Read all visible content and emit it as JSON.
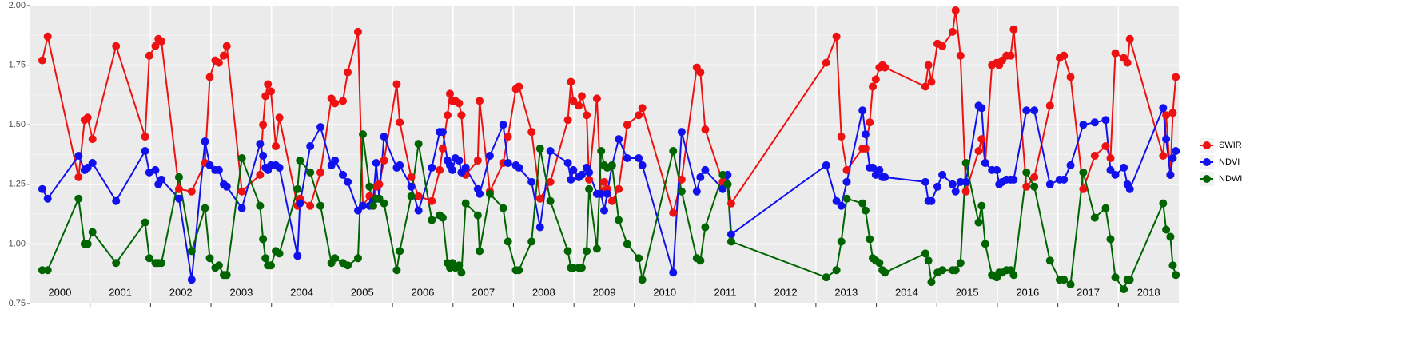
{
  "chart_data": {
    "type": "line",
    "x": [
      2000.21,
      2000.3,
      2000.81,
      2000.91,
      2000.96,
      2001.04,
      2001.43,
      2001.91,
      2001.98,
      2002.08,
      2002.13,
      2002.18,
      2002.47,
      2002.68,
      2002.9,
      2002.98,
      2003.07,
      2003.13,
      2003.21,
      2003.26,
      2003.51,
      2003.81,
      2003.86,
      2003.9,
      2003.94,
      2003.99,
      2004.07,
      2004.13,
      2004.43,
      2004.47,
      2004.64,
      2004.81,
      2004.99,
      2005.05,
      2005.18,
      2005.26,
      2005.43,
      2005.51,
      2005.62,
      2005.68,
      2005.73,
      2005.78,
      2005.86,
      2006.07,
      2006.12,
      2006.31,
      2006.43,
      2006.65,
      2006.78,
      2006.83,
      2006.91,
      2006.95,
      2006.99,
      2007.04,
      2007.1,
      2007.14,
      2007.21,
      2007.41,
      2007.44,
      2007.61,
      2007.83,
      2007.91,
      2008.04,
      2008.09,
      2008.3,
      2008.44,
      2008.61,
      2008.9,
      2008.95,
      2008.99,
      2009.08,
      2009.13,
      2009.21,
      2009.25,
      2009.38,
      2009.45,
      2009.5,
      2009.55,
      2009.63,
      2009.74,
      2009.88,
      2010.07,
      2010.13,
      2010.64,
      2010.78,
      2011.03,
      2011.09,
      2011.17,
      2011.46,
      2011.54,
      2011.6,
      2013.17,
      2013.34,
      2013.42,
      2013.51,
      2013.77,
      2013.82,
      2013.89,
      2013.94,
      2013.99,
      2014.05,
      2014.1,
      2014.14,
      2014.81,
      2014.86,
      2014.91,
      2015.01,
      2015.09,
      2015.26,
      2015.31,
      2015.39,
      2015.48,
      2015.69,
      2015.74,
      2015.8,
      2015.91,
      2015.99,
      2016.03,
      2016.08,
      2016.15,
      2016.22,
      2016.27,
      2016.48,
      2016.61,
      2016.87,
      2017.03,
      2017.1,
      2017.21,
      2017.42,
      2017.61,
      2017.79,
      2017.87,
      2017.95,
      2018.09,
      2018.15,
      2018.19,
      2018.74,
      2018.79,
      2018.86,
      2018.9,
      2018.95
    ],
    "series": [
      {
        "name": "SWIR",
        "color": "#ee1111",
        "values": [
          1.77,
          1.87,
          1.28,
          1.52,
          1.53,
          1.44,
          1.83,
          1.45,
          1.79,
          1.83,
          1.86,
          1.85,
          1.23,
          1.22,
          1.34,
          1.7,
          1.77,
          1.76,
          1.79,
          1.83,
          1.22,
          1.29,
          1.5,
          1.62,
          1.67,
          1.64,
          1.41,
          1.53,
          1.16,
          1.19,
          1.16,
          1.3,
          1.61,
          1.59,
          1.6,
          1.72,
          1.89,
          1.16,
          1.2,
          1.16,
          1.24,
          1.25,
          1.35,
          1.67,
          1.51,
          1.28,
          1.2,
          1.18,
          1.31,
          1.4,
          1.54,
          1.63,
          1.6,
          1.6,
          1.59,
          1.54,
          1.29,
          1.35,
          1.6,
          1.22,
          1.34,
          1.45,
          1.65,
          1.66,
          1.47,
          1.19,
          1.26,
          1.52,
          1.68,
          1.6,
          1.58,
          1.62,
          1.54,
          1.27,
          1.61,
          1.21,
          1.26,
          1.23,
          1.18,
          1.23,
          1.5,
          1.54,
          1.57,
          1.13,
          1.27,
          1.74,
          1.72,
          1.48,
          1.26,
          1.25,
          1.17,
          1.76,
          1.87,
          1.45,
          1.31,
          1.4,
          1.4,
          1.51,
          1.66,
          1.69,
          1.74,
          1.75,
          1.74,
          1.66,
          1.75,
          1.68,
          1.84,
          1.83,
          1.89,
          1.98,
          1.79,
          1.22,
          1.39,
          1.44,
          1.34,
          1.75,
          1.76,
          1.75,
          1.77,
          1.79,
          1.79,
          1.9,
          1.24,
          1.28,
          1.58,
          1.78,
          1.79,
          1.7,
          1.23,
          1.37,
          1.41,
          1.36,
          1.8,
          1.78,
          1.76,
          1.86,
          1.37,
          1.54,
          1.29,
          1.55,
          1.7
        ]
      },
      {
        "name": "NDVI",
        "color": "#1111ee",
        "values": [
          1.23,
          1.19,
          1.37,
          1.31,
          1.32,
          1.34,
          1.18,
          1.39,
          1.3,
          1.31,
          1.25,
          1.27,
          1.19,
          0.85,
          1.43,
          1.33,
          1.31,
          1.31,
          1.25,
          1.24,
          1.15,
          1.42,
          1.37,
          1.32,
          1.31,
          1.33,
          1.33,
          1.32,
          0.95,
          1.17,
          1.41,
          1.49,
          1.33,
          1.35,
          1.29,
          1.26,
          1.14,
          1.16,
          1.16,
          1.18,
          1.34,
          1.19,
          1.45,
          1.32,
          1.33,
          1.24,
          1.14,
          1.32,
          1.47,
          1.47,
          1.35,
          1.33,
          1.31,
          1.36,
          1.35,
          1.3,
          1.32,
          1.23,
          1.21,
          1.37,
          1.5,
          1.34,
          1.33,
          1.32,
          1.26,
          1.07,
          1.39,
          1.34,
          1.27,
          1.31,
          1.28,
          1.29,
          1.32,
          1.3,
          1.21,
          1.21,
          1.14,
          1.21,
          1.33,
          1.44,
          1.36,
          1.36,
          1.33,
          0.88,
          1.47,
          1.22,
          1.28,
          1.31,
          1.23,
          1.29,
          1.04,
          1.33,
          1.18,
          1.16,
          1.26,
          1.56,
          1.46,
          1.32,
          1.32,
          1.29,
          1.31,
          1.28,
          1.28,
          1.26,
          1.18,
          1.18,
          1.24,
          1.29,
          1.25,
          1.22,
          1.26,
          1.26,
          1.58,
          1.57,
          1.34,
          1.31,
          1.31,
          1.25,
          1.26,
          1.27,
          1.27,
          1.27,
          1.56,
          1.56,
          1.25,
          1.27,
          1.27,
          1.33,
          1.5,
          1.51,
          1.52,
          1.31,
          1.29,
          1.32,
          1.25,
          1.23,
          1.57,
          1.44,
          1.29,
          1.36,
          1.39
        ]
      },
      {
        "name": "NDWI",
        "color": "#006400",
        "values": [
          0.89,
          0.89,
          1.19,
          1.0,
          1.0,
          1.05,
          0.92,
          1.09,
          0.94,
          0.92,
          0.92,
          0.92,
          1.28,
          0.97,
          1.15,
          0.94,
          0.9,
          0.91,
          0.87,
          0.87,
          1.36,
          1.16,
          1.02,
          0.94,
          0.91,
          0.91,
          0.97,
          0.96,
          1.23,
          1.35,
          1.3,
          1.16,
          0.92,
          0.94,
          0.92,
          0.91,
          0.94,
          1.46,
          1.24,
          1.16,
          1.19,
          1.19,
          1.17,
          0.89,
          0.97,
          1.2,
          1.42,
          1.1,
          1.12,
          1.11,
          0.92,
          0.9,
          0.92,
          0.9,
          0.91,
          0.88,
          1.17,
          1.12,
          0.97,
          1.21,
          1.15,
          1.01,
          0.89,
          0.89,
          1.01,
          1.4,
          1.18,
          0.97,
          0.9,
          0.9,
          0.9,
          0.9,
          0.97,
          1.23,
          0.98,
          1.39,
          1.33,
          1.32,
          1.33,
          1.1,
          1.0,
          0.94,
          0.85,
          1.39,
          1.22,
          0.94,
          0.93,
          1.07,
          1.29,
          1.25,
          1.01,
          0.86,
          0.89,
          1.01,
          1.19,
          1.17,
          1.14,
          1.02,
          0.94,
          0.93,
          0.92,
          0.89,
          0.88,
          0.96,
          0.93,
          0.84,
          0.88,
          0.89,
          0.89,
          0.89,
          0.92,
          1.34,
          1.09,
          1.16,
          1.0,
          0.87,
          0.86,
          0.88,
          0.88,
          0.89,
          0.89,
          0.87,
          1.3,
          1.24,
          0.93,
          0.85,
          0.85,
          0.83,
          1.3,
          1.11,
          1.15,
          1.02,
          0.86,
          0.81,
          0.85,
          0.85,
          1.17,
          1.06,
          1.03,
          0.91,
          0.87
        ]
      }
    ],
    "xlim": [
      2000,
      2019
    ],
    "xticks": [
      2001,
      2002,
      2003,
      2004,
      2005,
      2006,
      2007,
      2008,
      2009,
      2010,
      2011,
      2012,
      2013,
      2014,
      2015,
      2016,
      2017,
      2018
    ],
    "ylim": [
      0.75,
      2.0
    ],
    "yticks": [
      {
        "value": 0.75,
        "label": "0.75"
      },
      {
        "value": 1.0,
        "label": "1.00"
      },
      {
        "value": 1.25,
        "label": "1.25"
      },
      {
        "value": 1.5,
        "label": "1.50"
      },
      {
        "value": 1.75,
        "label": "1.75"
      },
      {
        "value": 2.0,
        "label": "2.00"
      }
    ],
    "annotations": [
      {
        "x": 2000.5,
        "text": "2000"
      },
      {
        "x": 2001.5,
        "text": "2001"
      },
      {
        "x": 2002.5,
        "text": "2002"
      },
      {
        "x": 2003.5,
        "text": "2003"
      },
      {
        "x": 2004.5,
        "text": "2004"
      },
      {
        "x": 2005.5,
        "text": "2005"
      },
      {
        "x": 2006.5,
        "text": "2006"
      },
      {
        "x": 2007.5,
        "text": "2007"
      },
      {
        "x": 2008.5,
        "text": "2008"
      },
      {
        "x": 2009.5,
        "text": "2009"
      },
      {
        "x": 2010.5,
        "text": "2010"
      },
      {
        "x": 2011.5,
        "text": "2011"
      },
      {
        "x": 2012.5,
        "text": "2012"
      },
      {
        "x": 2013.5,
        "text": "2013"
      },
      {
        "x": 2014.5,
        "text": "2014"
      },
      {
        "x": 2015.5,
        "text": "2015"
      },
      {
        "x": 2016.5,
        "text": "2016"
      },
      {
        "x": 2017.5,
        "text": "2017"
      },
      {
        "x": 2018.5,
        "text": "2018"
      }
    ],
    "grid": true,
    "legend": "right"
  }
}
